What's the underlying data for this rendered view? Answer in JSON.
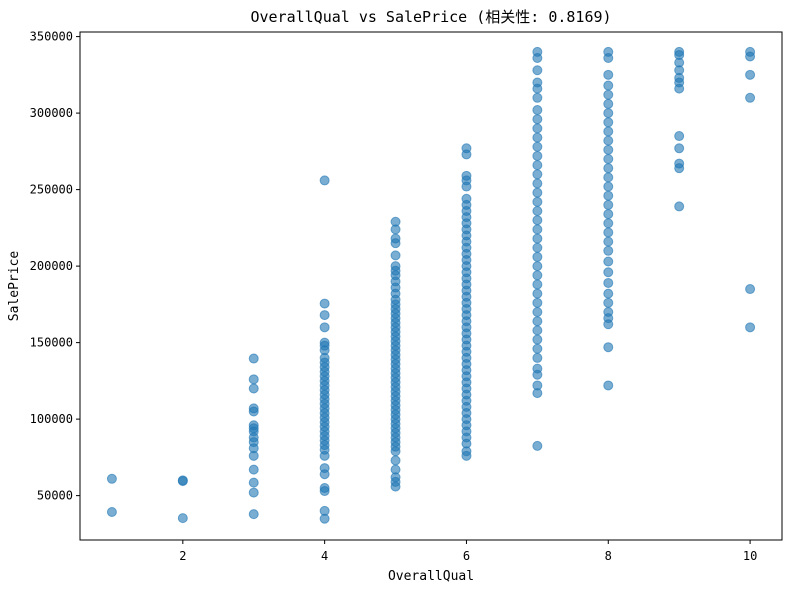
{
  "chart_data": {
    "type": "scatter",
    "title": "OverallQual vs SalePrice (相关性: 0.8169)",
    "xlabel": "OverallQual",
    "ylabel": "SalePrice",
    "xlim": [
      0.55,
      10.45
    ],
    "ylim": [
      21000,
      353000
    ],
    "xticks": [
      2,
      4,
      6,
      8,
      10
    ],
    "yticks": [
      50000,
      100000,
      150000,
      200000,
      250000,
      300000,
      350000
    ],
    "grid": false,
    "color": "#1f77b4",
    "points": [
      [
        1,
        61000
      ],
      [
        1,
        39300
      ],
      [
        2,
        60000
      ],
      [
        2,
        59500
      ],
      [
        2,
        35300
      ],
      [
        3,
        139600
      ],
      [
        3,
        126000
      ],
      [
        3,
        120000
      ],
      [
        3,
        107000
      ],
      [
        3,
        105000
      ],
      [
        3,
        96000
      ],
      [
        3,
        94000
      ],
      [
        3,
        92000
      ],
      [
        3,
        88000
      ],
      [
        3,
        85000
      ],
      [
        3,
        81000
      ],
      [
        3,
        76000
      ],
      [
        3,
        67000
      ],
      [
        3,
        58500
      ],
      [
        3,
        52000
      ],
      [
        3,
        37900
      ],
      [
        4,
        256000
      ],
      [
        4,
        175500
      ],
      [
        4,
        168000
      ],
      [
        4,
        160000
      ],
      [
        4,
        150000
      ],
      [
        4,
        148000
      ],
      [
        4,
        145000
      ],
      [
        4,
        140000
      ],
      [
        4,
        137000
      ],
      [
        4,
        134000
      ],
      [
        4,
        131000
      ],
      [
        4,
        128000
      ],
      [
        4,
        125000
      ],
      [
        4,
        122000
      ],
      [
        4,
        119000
      ],
      [
        4,
        116000
      ],
      [
        4,
        113000
      ],
      [
        4,
        110000
      ],
      [
        4,
        107000
      ],
      [
        4,
        104000
      ],
      [
        4,
        101000
      ],
      [
        4,
        98000
      ],
      [
        4,
        95000
      ],
      [
        4,
        92000
      ],
      [
        4,
        89000
      ],
      [
        4,
        86000
      ],
      [
        4,
        83000
      ],
      [
        4,
        80000
      ],
      [
        4,
        76000
      ],
      [
        4,
        68000
      ],
      [
        4,
        64000
      ],
      [
        4,
        55000
      ],
      [
        4,
        53000
      ],
      [
        4,
        40000
      ],
      [
        4,
        34900
      ],
      [
        5,
        229000
      ],
      [
        5,
        224000
      ],
      [
        5,
        218000
      ],
      [
        5,
        215000
      ],
      [
        5,
        207000
      ],
      [
        5,
        200000
      ],
      [
        5,
        197000
      ],
      [
        5,
        194000
      ],
      [
        5,
        190000
      ],
      [
        5,
        186000
      ],
      [
        5,
        182000
      ],
      [
        5,
        178000
      ],
      [
        5,
        175000
      ],
      [
        5,
        172000
      ],
      [
        5,
        169000
      ],
      [
        5,
        166000
      ],
      [
        5,
        163000
      ],
      [
        5,
        160000
      ],
      [
        5,
        157000
      ],
      [
        5,
        154000
      ],
      [
        5,
        151000
      ],
      [
        5,
        148000
      ],
      [
        5,
        145000
      ],
      [
        5,
        142000
      ],
      [
        5,
        139000
      ],
      [
        5,
        136000
      ],
      [
        5,
        133000
      ],
      [
        5,
        130000
      ],
      [
        5,
        127000
      ],
      [
        5,
        124000
      ],
      [
        5,
        121000
      ],
      [
        5,
        118000
      ],
      [
        5,
        115000
      ],
      [
        5,
        112000
      ],
      [
        5,
        109000
      ],
      [
        5,
        106000
      ],
      [
        5,
        103000
      ],
      [
        5,
        100000
      ],
      [
        5,
        97000
      ],
      [
        5,
        94000
      ],
      [
        5,
        91000
      ],
      [
        5,
        88000
      ],
      [
        5,
        85000
      ],
      [
        5,
        82000
      ],
      [
        5,
        79000
      ],
      [
        5,
        73000
      ],
      [
        5,
        67000
      ],
      [
        5,
        62000
      ],
      [
        5,
        59000
      ],
      [
        5,
        55900
      ],
      [
        6,
        277000
      ],
      [
        6,
        273000
      ],
      [
        6,
        259000
      ],
      [
        6,
        256000
      ],
      [
        6,
        252000
      ],
      [
        6,
        244000
      ],
      [
        6,
        240000
      ],
      [
        6,
        236000
      ],
      [
        6,
        232000
      ],
      [
        6,
        228000
      ],
      [
        6,
        224000
      ],
      [
        6,
        220000
      ],
      [
        6,
        216000
      ],
      [
        6,
        212000
      ],
      [
        6,
        208000
      ],
      [
        6,
        204000
      ],
      [
        6,
        200000
      ],
      [
        6,
        196000
      ],
      [
        6,
        192000
      ],
      [
        6,
        188000
      ],
      [
        6,
        184000
      ],
      [
        6,
        180000
      ],
      [
        6,
        176000
      ],
      [
        6,
        172000
      ],
      [
        6,
        168000
      ],
      [
        6,
        164000
      ],
      [
        6,
        160000
      ],
      [
        6,
        156000
      ],
      [
        6,
        152000
      ],
      [
        6,
        148000
      ],
      [
        6,
        144000
      ],
      [
        6,
        140000
      ],
      [
        6,
        136000
      ],
      [
        6,
        132000
      ],
      [
        6,
        128000
      ],
      [
        6,
        124000
      ],
      [
        6,
        120000
      ],
      [
        6,
        116000
      ],
      [
        6,
        112000
      ],
      [
        6,
        108000
      ],
      [
        6,
        104000
      ],
      [
        6,
        100000
      ],
      [
        6,
        96000
      ],
      [
        6,
        92000
      ],
      [
        6,
        88000
      ],
      [
        6,
        84000
      ],
      [
        6,
        79000
      ],
      [
        6,
        76000
      ],
      [
        7,
        340000
      ],
      [
        7,
        336000
      ],
      [
        7,
        328000
      ],
      [
        7,
        320000
      ],
      [
        7,
        316000
      ],
      [
        7,
        310000
      ],
      [
        7,
        302000
      ],
      [
        7,
        296000
      ],
      [
        7,
        290000
      ],
      [
        7,
        284000
      ],
      [
        7,
        278000
      ],
      [
        7,
        272000
      ],
      [
        7,
        266000
      ],
      [
        7,
        260000
      ],
      [
        7,
        254000
      ],
      [
        7,
        248000
      ],
      [
        7,
        242000
      ],
      [
        7,
        236000
      ],
      [
        7,
        230000
      ],
      [
        7,
        224000
      ],
      [
        7,
        218000
      ],
      [
        7,
        212000
      ],
      [
        7,
        206000
      ],
      [
        7,
        200000
      ],
      [
        7,
        194000
      ],
      [
        7,
        188000
      ],
      [
        7,
        182000
      ],
      [
        7,
        176000
      ],
      [
        7,
        170000
      ],
      [
        7,
        164000
      ],
      [
        7,
        158000
      ],
      [
        7,
        152000
      ],
      [
        7,
        146000
      ],
      [
        7,
        140000
      ],
      [
        7,
        133000
      ],
      [
        7,
        129000
      ],
      [
        7,
        122000
      ],
      [
        7,
        117000
      ],
      [
        7,
        82500
      ],
      [
        8,
        340000
      ],
      [
        8,
        336000
      ],
      [
        8,
        325000
      ],
      [
        8,
        318000
      ],
      [
        8,
        312000
      ],
      [
        8,
        306000
      ],
      [
        8,
        300000
      ],
      [
        8,
        294000
      ],
      [
        8,
        288000
      ],
      [
        8,
        282000
      ],
      [
        8,
        276000
      ],
      [
        8,
        270000
      ],
      [
        8,
        264000
      ],
      [
        8,
        258000
      ],
      [
        8,
        252000
      ],
      [
        8,
        246000
      ],
      [
        8,
        240000
      ],
      [
        8,
        234000
      ],
      [
        8,
        228000
      ],
      [
        8,
        222000
      ],
      [
        8,
        216000
      ],
      [
        8,
        210000
      ],
      [
        8,
        203000
      ],
      [
        8,
        196000
      ],
      [
        8,
        189000
      ],
      [
        8,
        182000
      ],
      [
        8,
        176000
      ],
      [
        8,
        170000
      ],
      [
        8,
        166000
      ],
      [
        8,
        162000
      ],
      [
        8,
        147000
      ],
      [
        8,
        122000
      ],
      [
        9,
        340000
      ],
      [
        9,
        338000
      ],
      [
        9,
        333000
      ],
      [
        9,
        328000
      ],
      [
        9,
        323000
      ],
      [
        9,
        320000
      ],
      [
        9,
        316000
      ],
      [
        9,
        285000
      ],
      [
        9,
        277000
      ],
      [
        9,
        267000
      ],
      [
        9,
        264000
      ],
      [
        9,
        239000
      ],
      [
        10,
        340000
      ],
      [
        10,
        337000
      ],
      [
        10,
        325000
      ],
      [
        10,
        310000
      ],
      [
        10,
        185000
      ],
      [
        10,
        160000
      ]
    ]
  }
}
